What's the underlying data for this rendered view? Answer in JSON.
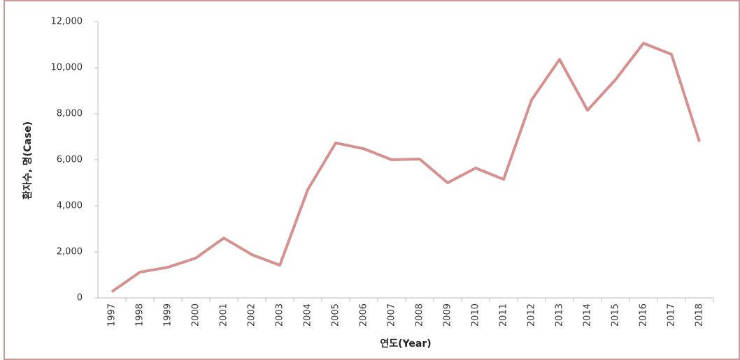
{
  "chart_data": {
    "type": "line",
    "x_label": "연도(Year)",
    "y_label": "환자수, 명(Case)",
    "categories": [
      "1997",
      "1998",
      "1999",
      "2000",
      "2001",
      "2002",
      "2003",
      "2004",
      "2005",
      "2006",
      "2007",
      "2008",
      "2009",
      "2010",
      "2011",
      "2012",
      "2013",
      "2014",
      "2015",
      "2016",
      "2017",
      "2018"
    ],
    "series": [
      {
        "color": "#d4918f",
        "values": [
          270,
          1120,
          1330,
          1730,
          2600,
          1880,
          1420,
          4700,
          6730,
          6480,
          6000,
          6030,
          5000,
          5640,
          5150,
          8600,
          10360,
          8150,
          9480,
          11060,
          10580,
          6790
        ]
      }
    ],
    "ylim": [
      0,
      12000
    ],
    "yticks": [
      0,
      {
        "value": 2000,
        "label": "2,000"
      },
      {
        "value": 4000,
        "label": "4,000"
      },
      {
        "value": 6000,
        "label": "6,000"
      },
      {
        "value": 8000,
        "label": "8,000"
      },
      {
        "value": 10000,
        "label": "10,000"
      },
      {
        "value": 12000,
        "label": "12,000"
      }
    ],
    "grid": false
  }
}
